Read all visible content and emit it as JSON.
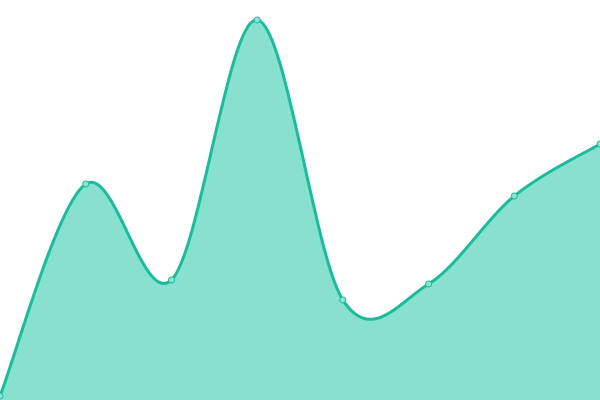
{
  "chart_data": {
    "type": "area",
    "title": "",
    "xlabel": "",
    "ylabel": "",
    "x": [
      0,
      1,
      2,
      3,
      4,
      5,
      6,
      7
    ],
    "values": [
      1,
      54,
      30,
      95,
      25,
      29,
      51,
      64
    ],
    "ylim": [
      0,
      100
    ],
    "grid": false,
    "legend": "none",
    "curve": "smooth",
    "colors": {
      "line": "#1abc9c",
      "fill": "#88e0ce",
      "marker_fill": "#8fe3d1",
      "background": "#ffffff"
    }
  }
}
